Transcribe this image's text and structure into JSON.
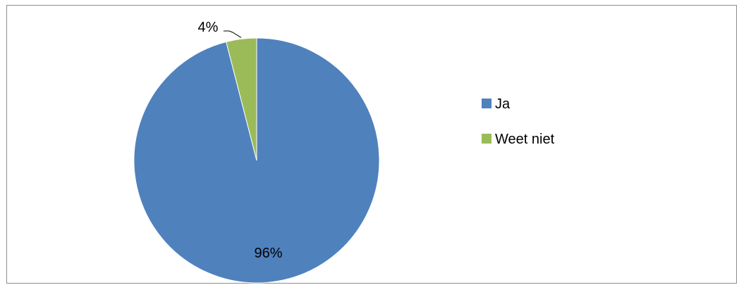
{
  "chart_data": {
    "type": "pie",
    "categories": [
      "Ja",
      "Weet niet"
    ],
    "values": [
      96,
      4
    ],
    "data_labels": [
      "96%",
      "4%"
    ],
    "colors": [
      "#4f81bd",
      "#9bbb59"
    ],
    "start_angle_deg": 0,
    "direction": "clockwise",
    "legend": {
      "position": "right",
      "entries": [
        "Ja",
        "Weet niet"
      ]
    },
    "title": ""
  }
}
